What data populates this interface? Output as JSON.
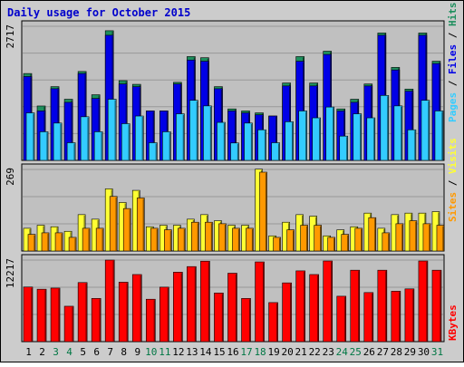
{
  "title": "Daily usage for October 2015",
  "colors": {
    "outer_bg": "#cccccc",
    "panel_bg": "#c0c0c0",
    "grid": "#999999",
    "title": "#0000cc",
    "label": "#000000",
    "weekend_label": "#007744",
    "hits": "#1d8f5d",
    "files": "#0000e6",
    "pages": "#33ccff",
    "visits": "#ffff33",
    "sites": "#ff9900",
    "kbytes": "#ff0000"
  },
  "chart_data": [
    {
      "type": "bar",
      "panel": "top",
      "ymax_label": "2717",
      "ylim": [
        0,
        2717
      ],
      "grid": true,
      "legend_position": "right",
      "legend": [
        {
          "text": "Pages",
          "color_key": "pages"
        },
        {
          "text": "Files",
          "color_key": "files"
        },
        {
          "text": "Hits",
          "color_key": "hits"
        }
      ],
      "categories": [
        "1",
        "2",
        "3",
        "4",
        "5",
        "6",
        "7",
        "8",
        "9",
        "10",
        "11",
        "12",
        "13",
        "14",
        "15",
        "16",
        "17",
        "18",
        "19",
        "20",
        "21",
        "22",
        "23",
        "24",
        "25",
        "26",
        "27",
        "28",
        "29",
        "30",
        "31"
      ],
      "series": [
        {
          "name": "Hits",
          "color_key": "hits",
          "values": [
            1760,
            1102,
            1494,
            1239,
            1801,
            1330,
            2627,
            1616,
            1541,
            1002,
            1002,
            1582,
            2103,
            2080,
            1494,
            1043,
            1002,
            963,
            899,
            1568,
            2103,
            1568,
            2212,
            1043,
            1239,
            1548,
            2581,
            1884,
            1445,
            2581,
            2009
          ]
        },
        {
          "name": "Files",
          "color_key": "files",
          "values": [
            1699,
            1002,
            1452,
            1176,
            1760,
            1255,
            2535,
            1548,
            1494,
            1002,
            1002,
            1548,
            2033,
            2009,
            1452,
            1002,
            963,
            924,
            899,
            1508,
            2009,
            1508,
            2146,
            1002,
            1176,
            1508,
            2535,
            1832,
            1402,
            2535,
            1962
          ]
        },
        {
          "name": "Pages",
          "color_key": "pages",
          "values": [
            963,
            580,
            756,
            358,
            884,
            580,
            1239,
            744,
            899,
            358,
            580,
            944,
            1217,
            1104,
            770,
            353,
            756,
            620,
            358,
            783,
            1002,
            862,
            1081,
            492,
            944,
            862,
            1316,
            1104,
            620,
            1217,
            1002
          ]
        }
      ]
    },
    {
      "type": "bar",
      "panel": "middle",
      "ymax_label": "269",
      "ylim": [
        0,
        269
      ],
      "grid": true,
      "legend_position": "right",
      "legend": [
        {
          "text": "Sites",
          "color_key": "sites"
        },
        {
          "text": "Visits",
          "color_key": "visits"
        }
      ],
      "categories": [
        "1",
        "2",
        "3",
        "4",
        "5",
        "6",
        "7",
        "8",
        "9",
        "10",
        "11",
        "12",
        "13",
        "14",
        "15",
        "16",
        "17",
        "18",
        "19",
        "20",
        "21",
        "22",
        "23",
        "24",
        "25",
        "26",
        "27",
        "28",
        "29",
        "30",
        "31"
      ],
      "series": [
        {
          "name": "Visits",
          "color_key": "visits",
          "values": [
            75,
            85,
            80,
            65,
            120,
            105,
            205,
            160,
            200,
            80,
            85,
            85,
            105,
            120,
            100,
            85,
            85,
            270,
            50,
            95,
            120,
            115,
            50,
            70,
            80,
            125,
            75,
            120,
            125,
            125,
            130
          ]
        },
        {
          "name": "Sites",
          "color_key": "sites",
          "values": [
            55,
            60,
            60,
            45,
            75,
            75,
            180,
            140,
            175,
            75,
            70,
            75,
            95,
            95,
            90,
            75,
            75,
            260,
            45,
            70,
            85,
            85,
            45,
            55,
            75,
            110,
            60,
            90,
            100,
            90,
            85
          ]
        }
      ]
    },
    {
      "type": "bar",
      "panel": "bottom",
      "ymax_label": "12217",
      "ylim": [
        0,
        12217
      ],
      "grid": true,
      "legend_position": "right",
      "legend": [
        {
          "text": "KBytes",
          "color_key": "kbytes"
        }
      ],
      "categories": [
        "1",
        "2",
        "3",
        "4",
        "5",
        "6",
        "7",
        "8",
        "9",
        "10",
        "11",
        "12",
        "13",
        "14",
        "15",
        "16",
        "17",
        "18",
        "19",
        "20",
        "21",
        "22",
        "23",
        "24",
        "25",
        "26",
        "27",
        "28",
        "29",
        "30",
        "31"
      ],
      "series": [
        {
          "name": "KBytes",
          "color_key": "kbytes",
          "values": [
            8180,
            7850,
            8020,
            5300,
            8850,
            6470,
            12217,
            8900,
            10050,
            6350,
            8160,
            10400,
            11240,
            12050,
            7280,
            10250,
            6470,
            11940,
            5850,
            8800,
            10600,
            10050,
            12080,
            6800,
            10700,
            7350,
            10700,
            7550,
            7900,
            12080,
            10700
          ]
        }
      ]
    }
  ]
}
